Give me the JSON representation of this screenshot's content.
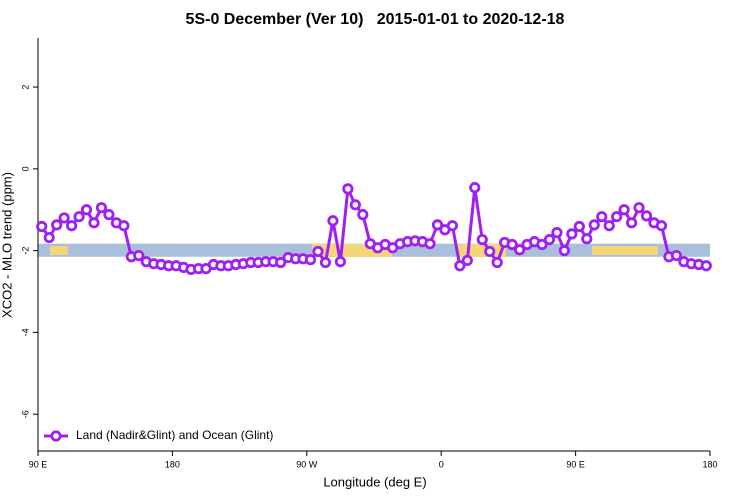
{
  "chart_data": {
    "type": "line",
    "title": "5S-0 December (Ver 10)   2015-01-01 to 2020-12-18",
    "x_label": "Longitude (deg E)",
    "y_label": "XCO2 - MLO trend (ppm)",
    "x": [
      92.5,
      97.5,
      102.5,
      107.5,
      112.5,
      117.5,
      122.5,
      127.5,
      132.5,
      137.5,
      142.5,
      147.5,
      152.5,
      157.5,
      162.5,
      167.5,
      172.5,
      177.5,
      182.5,
      187.5,
      192.5,
      197.5,
      202.5,
      207.5,
      212.5,
      217.5,
      222.5,
      227.5,
      232.5,
      237.5,
      242.5,
      247.5,
      252.5,
      257.5,
      262.5,
      267.5,
      272.5,
      277.5,
      282.5,
      287.5,
      292.5,
      297.5,
      302.5,
      307.5,
      312.5,
      317.5,
      322.5,
      327.5,
      332.5,
      337.5,
      342.5,
      347.5,
      352.5,
      357.5,
      362.5,
      367.5,
      372.5,
      377.5,
      382.5,
      387.5,
      392.5,
      397.5,
      402.5,
      407.5,
      412.5,
      417.5,
      422.5,
      427.5,
      432.5,
      437.5,
      442.5,
      447.5,
      452.5,
      457.5,
      462.5,
      467.5,
      472.5,
      477.5,
      482.5,
      487.5,
      492.5,
      497.5,
      502.5,
      507.5,
      512.5,
      517.5,
      522.5,
      527.5,
      532.5,
      537.5
    ],
    "series": [
      {
        "name": "Land (Nadir&Glint) and Ocean (Glint)",
        "color": "#a020f0",
        "values": [
          -1.41,
          -1.68,
          -1.37,
          -1.2,
          -1.39,
          -1.17,
          -1.0,
          -1.32,
          -0.95,
          -1.12,
          -1.32,
          -1.39,
          -2.15,
          -2.12,
          -2.27,
          -2.32,
          -2.34,
          -2.37,
          -2.37,
          -2.41,
          -2.46,
          -2.44,
          -2.44,
          -2.34,
          -2.37,
          -2.37,
          -2.34,
          -2.32,
          -2.29,
          -2.29,
          -2.27,
          -2.27,
          -2.29,
          -2.17,
          -2.2,
          -2.2,
          -2.22,
          -2.02,
          -2.29,
          -1.27,
          -2.27,
          -0.49,
          -0.88,
          -1.12,
          -1.83,
          -1.93,
          -1.85,
          -1.93,
          -1.83,
          -1.78,
          -1.76,
          -1.78,
          -1.83,
          -1.37,
          -1.49,
          -1.39,
          -2.37,
          -2.24,
          -0.46,
          -1.73,
          -2.02,
          -2.29,
          -1.8,
          -1.85,
          -1.98,
          -1.85,
          -1.78,
          -1.85,
          -1.73,
          -1.56,
          -2.0,
          -1.59,
          -1.41,
          -1.71,
          -1.37,
          -1.17,
          -1.39,
          -1.17,
          -1.0,
          -1.32,
          -0.95,
          -1.15,
          -1.32,
          -1.39,
          -2.15,
          -2.12,
          -2.27,
          -2.32,
          -2.34,
          -2.37
        ]
      }
    ],
    "band": {
      "ymin": -2.15,
      "ymax": -1.83,
      "color": "#a9bfdc"
    },
    "xlim": [
      90,
      540
    ],
    "xticks": [
      {
        "value": 90,
        "label": "90 E"
      },
      {
        "value": 180,
        "label": "180"
      },
      {
        "value": 270,
        "label": "90 W"
      },
      {
        "value": 360,
        "label": "0"
      },
      {
        "value": 450,
        "label": "90 E"
      },
      {
        "value": 540,
        "label": "180"
      }
    ],
    "ylim": [
      -6.9,
      3.2
    ],
    "yticks": [
      -6,
      -4,
      -2,
      0,
      2
    ],
    "legend": "bottom-left"
  }
}
